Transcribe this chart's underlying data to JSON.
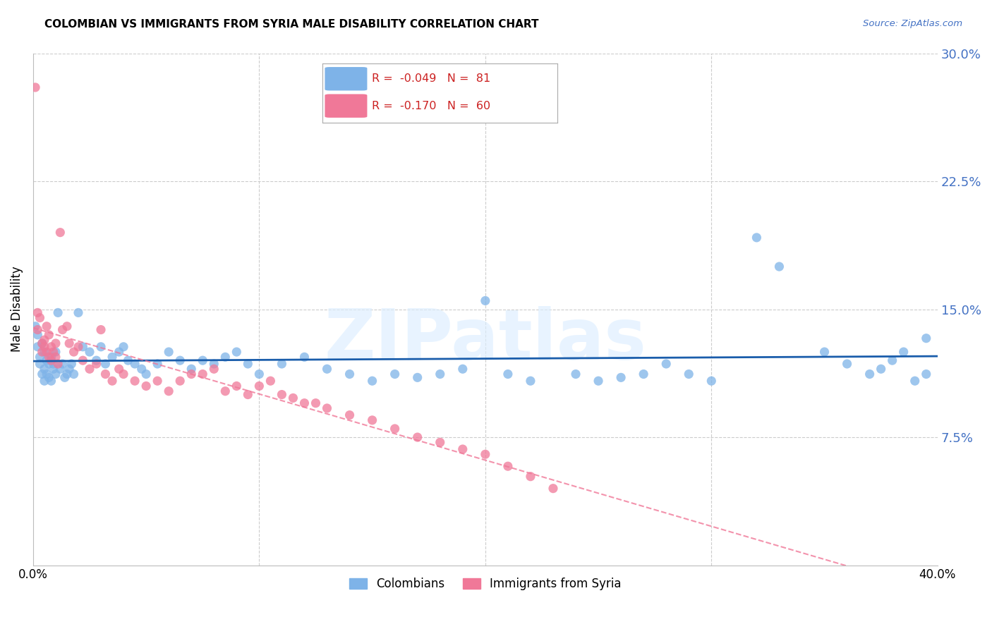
{
  "title": "COLOMBIAN VS IMMIGRANTS FROM SYRIA MALE DISABILITY CORRELATION CHART",
  "source": "Source: ZipAtlas.com",
  "ylabel": "Male Disability",
  "watermark": "ZIPatlas",
  "x_min": 0.0,
  "x_max": 0.4,
  "y_min": 0.0,
  "y_max": 0.3,
  "y_ticks": [
    0.075,
    0.15,
    0.225,
    0.3
  ],
  "y_tick_labels": [
    "7.5%",
    "15.0%",
    "22.5%",
    "30.0%"
  ],
  "x_ticks": [
    0.0,
    0.1,
    0.2,
    0.3,
    0.4
  ],
  "colombians_R": -0.049,
  "colombians_N": 81,
  "syria_R": -0.17,
  "syria_N": 60,
  "colombian_color": "#7EB3E8",
  "syria_color": "#F07898",
  "trend_colombian_color": "#1A5DAB",
  "trend_syria_color": "#F07898",
  "legend_colombian_label": "Colombians",
  "legend_syria_label": "Immigrants from Syria",
  "colombians_x": [
    0.001,
    0.002,
    0.002,
    0.003,
    0.003,
    0.004,
    0.004,
    0.005,
    0.005,
    0.005,
    0.006,
    0.006,
    0.007,
    0.007,
    0.008,
    0.008,
    0.009,
    0.009,
    0.01,
    0.01,
    0.011,
    0.012,
    0.013,
    0.014,
    0.015,
    0.016,
    0.017,
    0.018,
    0.02,
    0.022,
    0.025,
    0.028,
    0.03,
    0.032,
    0.035,
    0.038,
    0.04,
    0.042,
    0.045,
    0.048,
    0.05,
    0.055,
    0.06,
    0.065,
    0.07,
    0.075,
    0.08,
    0.085,
    0.09,
    0.095,
    0.1,
    0.11,
    0.12,
    0.13,
    0.14,
    0.15,
    0.16,
    0.17,
    0.18,
    0.19,
    0.2,
    0.21,
    0.22,
    0.24,
    0.25,
    0.26,
    0.27,
    0.28,
    0.29,
    0.3,
    0.32,
    0.33,
    0.35,
    0.36,
    0.37,
    0.375,
    0.38,
    0.385,
    0.39,
    0.395,
    0.395
  ],
  "colombians_y": [
    0.14,
    0.135,
    0.128,
    0.122,
    0.118,
    0.13,
    0.112,
    0.125,
    0.115,
    0.108,
    0.12,
    0.112,
    0.118,
    0.11,
    0.122,
    0.108,
    0.115,
    0.118,
    0.112,
    0.125,
    0.148,
    0.115,
    0.118,
    0.11,
    0.112,
    0.115,
    0.118,
    0.112,
    0.148,
    0.128,
    0.125,
    0.12,
    0.128,
    0.118,
    0.122,
    0.125,
    0.128,
    0.12,
    0.118,
    0.115,
    0.112,
    0.118,
    0.125,
    0.12,
    0.115,
    0.12,
    0.118,
    0.122,
    0.125,
    0.118,
    0.112,
    0.118,
    0.122,
    0.115,
    0.112,
    0.108,
    0.112,
    0.11,
    0.112,
    0.115,
    0.155,
    0.112,
    0.108,
    0.112,
    0.108,
    0.11,
    0.112,
    0.118,
    0.112,
    0.108,
    0.192,
    0.175,
    0.125,
    0.118,
    0.112,
    0.115,
    0.12,
    0.125,
    0.108,
    0.112,
    0.133
  ],
  "syria_x": [
    0.001,
    0.002,
    0.002,
    0.003,
    0.004,
    0.004,
    0.005,
    0.005,
    0.006,
    0.006,
    0.007,
    0.007,
    0.008,
    0.008,
    0.009,
    0.01,
    0.01,
    0.011,
    0.012,
    0.013,
    0.015,
    0.016,
    0.018,
    0.02,
    0.022,
    0.025,
    0.028,
    0.03,
    0.032,
    0.035,
    0.038,
    0.04,
    0.045,
    0.05,
    0.055,
    0.06,
    0.065,
    0.07,
    0.075,
    0.08,
    0.085,
    0.09,
    0.095,
    0.1,
    0.105,
    0.11,
    0.115,
    0.12,
    0.125,
    0.13,
    0.14,
    0.15,
    0.16,
    0.17,
    0.18,
    0.19,
    0.2,
    0.21,
    0.22,
    0.23
  ],
  "syria_y": [
    0.28,
    0.148,
    0.138,
    0.145,
    0.13,
    0.125,
    0.132,
    0.128,
    0.14,
    0.125,
    0.135,
    0.122,
    0.128,
    0.12,
    0.125,
    0.13,
    0.122,
    0.118,
    0.195,
    0.138,
    0.14,
    0.13,
    0.125,
    0.128,
    0.12,
    0.115,
    0.118,
    0.138,
    0.112,
    0.108,
    0.115,
    0.112,
    0.108,
    0.105,
    0.108,
    0.102,
    0.108,
    0.112,
    0.112,
    0.115,
    0.102,
    0.105,
    0.1,
    0.105,
    0.108,
    0.1,
    0.098,
    0.095,
    0.095,
    0.092,
    0.088,
    0.085,
    0.08,
    0.075,
    0.072,
    0.068,
    0.065,
    0.058,
    0.052,
    0.045
  ]
}
